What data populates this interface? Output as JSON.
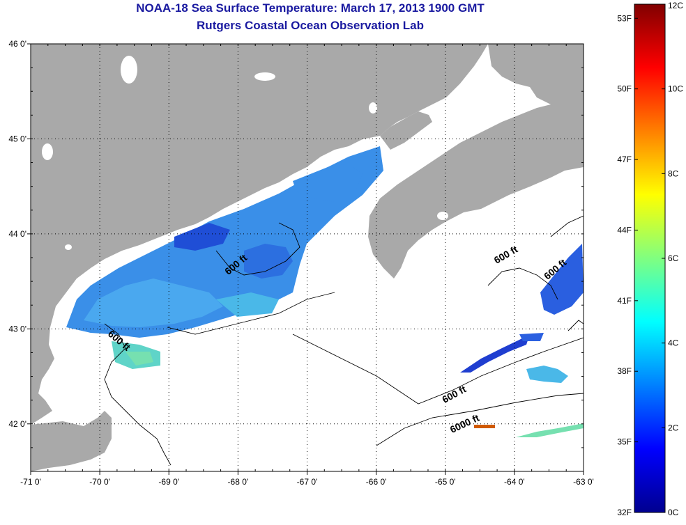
{
  "title": "NOAA-18 Sea Surface Temperature:  March 17, 2013 1900 GMT",
  "subtitle": "Rutgers Coastal Ocean Observation Lab",
  "map": {
    "lon_range": [
      -71,
      -63
    ],
    "lat_range": [
      41.5,
      46
    ],
    "lon_ticks": [
      {
        "value": -71,
        "label": "-71 0'"
      },
      {
        "value": -70,
        "label": "-70 0'"
      },
      {
        "value": -69,
        "label": "-69 0'"
      },
      {
        "value": -68,
        "label": "-68 0'"
      },
      {
        "value": -67,
        "label": "-67 0'"
      },
      {
        "value": -66,
        "label": "-66 0'"
      },
      {
        "value": -65,
        "label": "-65 0'"
      },
      {
        "value": -64,
        "label": "-64 0'"
      },
      {
        "value": -63,
        "label": "-63 0'"
      }
    ],
    "lat_ticks": [
      {
        "value": 46,
        "label": "46 0'"
      },
      {
        "value": 45,
        "label": "45 0'"
      },
      {
        "value": 44,
        "label": "44 0'"
      },
      {
        "value": 43,
        "label": "43 0'"
      },
      {
        "value": 42,
        "label": "42 0'"
      }
    ],
    "contour_labels": [
      {
        "text": "600 ft",
        "lon": -68.0,
        "lat": 43.65,
        "rotate": -40
      },
      {
        "text": "600 ft",
        "lon": -69.75,
        "lat": 42.85,
        "rotate": 40
      },
      {
        "text": "600 ft",
        "lon": -64.85,
        "lat": 42.28,
        "rotate": -28
      },
      {
        "text": "6000 ft",
        "lon": -64.7,
        "lat": 41.97,
        "rotate": -25
      },
      {
        "text": "600 ft",
        "lon": -64.1,
        "lat": 43.75,
        "rotate": -30
      },
      {
        "text": "600 ft",
        "lon": -63.38,
        "lat": 43.6,
        "rotate": -40
      }
    ],
    "land_color": "#a9a9a9",
    "grid": true
  },
  "colorbar": {
    "colors": [
      "#00008f",
      "#0000ff",
      "#0080ff",
      "#00ffff",
      "#80ff80",
      "#ffff00",
      "#ff8000",
      "#ff0000",
      "#800000"
    ],
    "left_labels": [
      {
        "value": 53,
        "label": "53F"
      },
      {
        "value": 50,
        "label": "50F"
      },
      {
        "value": 47,
        "label": "47F"
      },
      {
        "value": 44,
        "label": "44F"
      },
      {
        "value": 41,
        "label": "41F"
      },
      {
        "value": 38,
        "label": "38F"
      },
      {
        "value": 35,
        "label": "35F"
      },
      {
        "value": 32,
        "label": "32F"
      }
    ],
    "right_labels": [
      {
        "value": 12,
        "label": "12C"
      },
      {
        "value": 10,
        "label": "10C"
      },
      {
        "value": 8,
        "label": "8C"
      },
      {
        "value": 6,
        "label": "6C"
      },
      {
        "value": 4,
        "label": "4C"
      },
      {
        "value": 2,
        "label": "2C"
      },
      {
        "value": 0,
        "label": "0C"
      }
    ],
    "range_c": [
      0,
      12
    ]
  }
}
